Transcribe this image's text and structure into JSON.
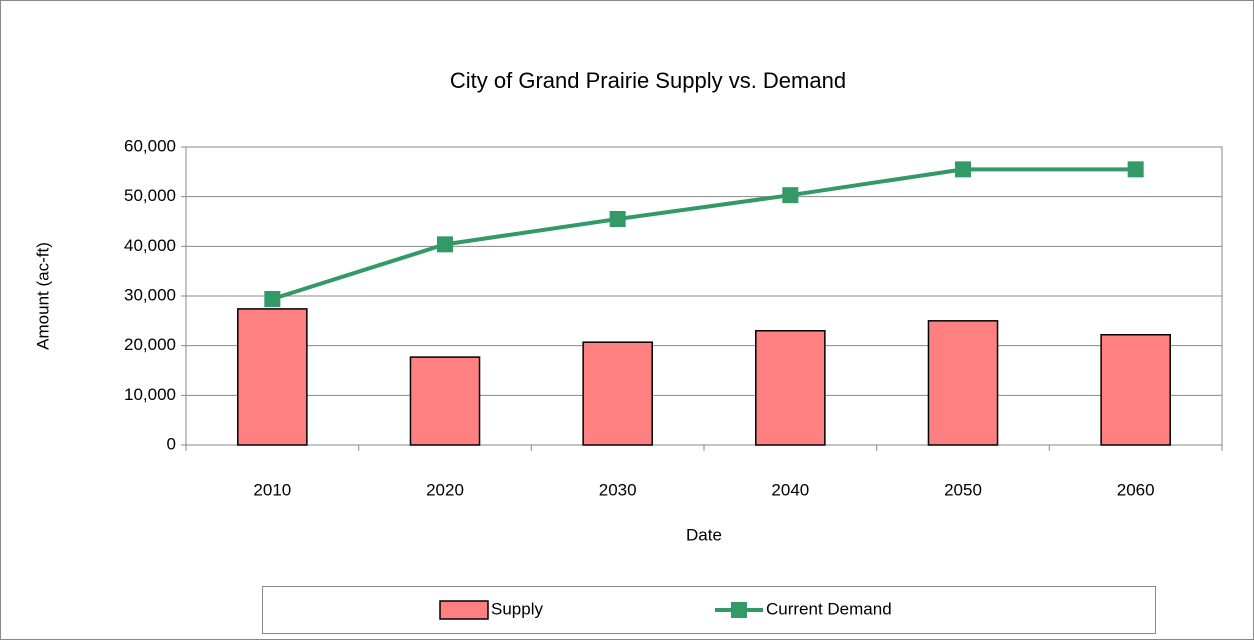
{
  "chart_data": {
    "type": "bar",
    "title": "City of Grand Prairie Supply vs. Demand",
    "x_label": "Date",
    "y_label": "Amount (ac-ft)",
    "categories": [
      "2010",
      "2020",
      "2030",
      "2040",
      "2050",
      "2060"
    ],
    "series": [
      {
        "name": "Supply",
        "type": "bar",
        "color": "#ff8080",
        "values": [
          27400,
          17700,
          20700,
          23000,
          25000,
          22200
        ]
      },
      {
        "name": "Current Demand",
        "type": "line",
        "color": "#339966",
        "values": [
          29400,
          40400,
          45500,
          50300,
          55500,
          55500
        ]
      }
    ],
    "ylim": [
      0,
      60000
    ],
    "yticks": [
      0,
      {
        "value": 10000,
        "label": "10,000"
      },
      {
        "value": 20000,
        "label": "20,000"
      },
      {
        "value": 30000,
        "label": "30,000"
      },
      {
        "value": 40000,
        "label": "40,000"
      },
      {
        "value": 50000,
        "label": "50,000"
      },
      {
        "value": 60000,
        "label": "60,000"
      }
    ],
    "grid": true,
    "legend": "bottom"
  }
}
